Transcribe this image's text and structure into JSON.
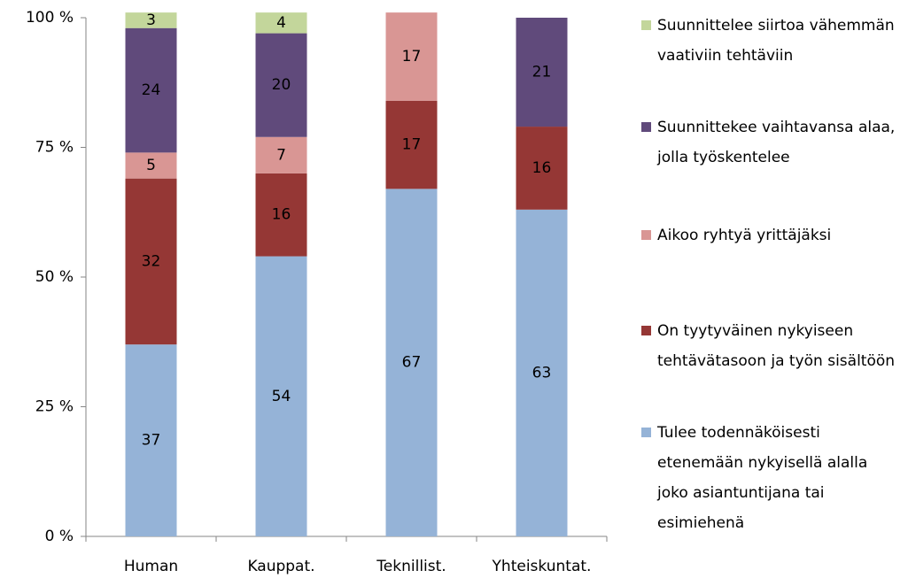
{
  "chart_data": {
    "type": "stacked_bar",
    "categories": [
      "Human",
      "Kauppat.",
      "Teknillist.",
      "Yhteiskuntat."
    ],
    "series": [
      {
        "name": "Tulee todennäköisesti etenemään nykyisellä alalla joko asiantuntijana tai esimiehenä",
        "color": "#95b3d7",
        "values": [
          37,
          54,
          67,
          63
        ]
      },
      {
        "name": "On tyytyväinen nykyiseen tehtävätasoon ja työn sisältöön",
        "color": "#953735",
        "values": [
          32,
          16,
          17,
          16
        ]
      },
      {
        "name": "Aikoo ryhtyä yrittäjäksi",
        "color": "#d99694",
        "values": [
          5,
          7,
          17,
          null
        ]
      },
      {
        "name": "Suunnittekee vaihtavansa alaa, jolla työskentelee",
        "color": "#604a7b",
        "values": [
          24,
          20,
          null,
          21
        ]
      },
      {
        "name": "Suunnittelee siirtoa vähemmän vaativiin tehtäviin",
        "color": "#c3d69b",
        "values": [
          3,
          4,
          null,
          null
        ]
      }
    ],
    "ylim": [
      0,
      100
    ],
    "yticks": [
      {
        "value": 0,
        "label": "0 %"
      },
      {
        "value": 25,
        "label": "25 %"
      },
      {
        "value": 50,
        "label": "50 %"
      },
      {
        "value": 75,
        "label": "75 %"
      },
      {
        "value": 100,
        "label": "100 %"
      }
    ],
    "grid": false,
    "legend": "right"
  }
}
